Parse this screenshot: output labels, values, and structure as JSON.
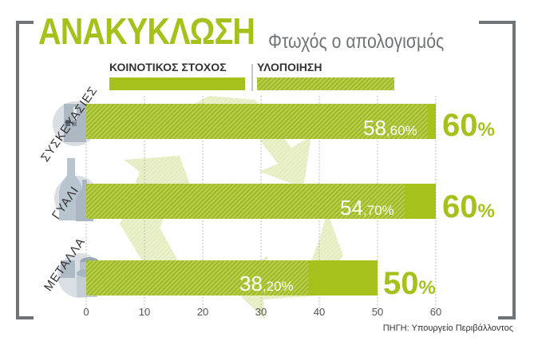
{
  "header": {
    "title": "ΑΝΑΚΥΚΛΩΣΗ",
    "subtitle": "Φτωχός ο απολογισμός"
  },
  "legend": {
    "target_label": "ΚΟΙΝΟΤΙΚΟΣ ΣΤΟΧΟΣ",
    "actual_label": "ΥΛΟΠΟΙΗΣΗ"
  },
  "source": "ΠΗΓΗ: Υπουργείο Περιβάλλοντος",
  "colors": {
    "accent": "#a6c11c",
    "actual_dark": "#9eb82a",
    "actual_light": "#b7cf4a",
    "frame": "#6f7478"
  },
  "icons": [
    "recycle-symbol-icon",
    "packaging-box-icon",
    "glass-bottles-icon",
    "metal-cans-icon"
  ],
  "chart_data": {
    "type": "bar",
    "orientation": "horizontal",
    "categories": [
      "ΣΥΣΚΕΥΑΣΙΕΣ",
      "ΓΥΑΛΙ",
      "ΜΕΤΑΛΛΑ"
    ],
    "series": [
      {
        "name": "ΚΟΙΝΟΤΙΚΟΣ ΣΤΟΧΟΣ",
        "values": [
          60,
          60,
          50
        ]
      },
      {
        "name": "ΥΛΟΠΟΙΗΣΗ",
        "values": [
          58.6,
          54.7,
          38.2
        ]
      }
    ],
    "value_labels": [
      {
        "int": "58",
        "dec": ",60%",
        "target": "60",
        "target_unit": "%"
      },
      {
        "int": "54",
        "dec": ",70%",
        "target": "60",
        "target_unit": "%"
      },
      {
        "int": "38",
        "dec": ",20%",
        "target": "50",
        "target_unit": "%"
      }
    ],
    "xticks": [
      "0",
      "10",
      "20",
      "30",
      "40",
      "50",
      "60"
    ],
    "xlim": [
      0,
      60
    ],
    "grid": true,
    "legend_position": "top"
  }
}
